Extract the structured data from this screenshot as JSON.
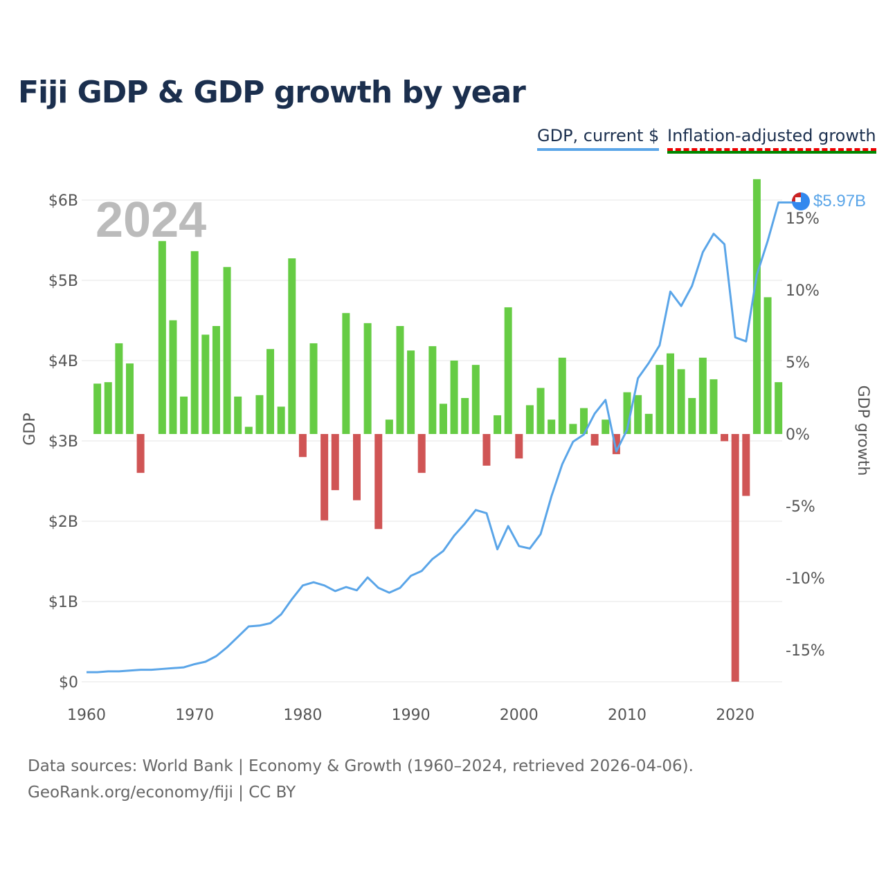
{
  "title": "Fiji GDP & GDP growth by year",
  "legend": {
    "gdp": "GDP, current $",
    "growth": "Inflation-adjusted growth"
  },
  "year_label": "2024",
  "end_label": "$5.97B",
  "source_line1": "Data sources: World Bank | Economy & Growth (1960–2024, retrieved 2026-04-06).",
  "source_line2": "GeoRank.org/economy/fiji | CC BY",
  "colors": {
    "line": "#5aa5e8",
    "positive": "#66cc44",
    "negative": "#d05555",
    "title": "#1b2f4e"
  },
  "chart_data": {
    "type": "bar+line",
    "title": "Fiji GDP & GDP growth by year",
    "ylabel": "GDP",
    "y2label": "GDP growth",
    "ylim": [
      0,
      6
    ],
    "y2lim": [
      -17.2,
      17.2
    ],
    "xticks": [
      "1960",
      "1970",
      "1980",
      "1990",
      "2000",
      "2010",
      "2020"
    ],
    "yticks": [
      "$0",
      "$1B",
      "$2B",
      "$3B",
      "$4B",
      "$5B",
      "$6B"
    ],
    "y2ticks": [
      "-15%",
      "-10%",
      "-5%",
      "0%",
      "5%",
      "10%",
      "15%"
    ],
    "gdp": {
      "name": "GDP, current $",
      "start_year": 1960,
      "values_billion": [
        0.12,
        0.12,
        0.13,
        0.13,
        0.14,
        0.15,
        0.15,
        0.16,
        0.17,
        0.18,
        0.22,
        0.25,
        0.32,
        0.43,
        0.56,
        0.69,
        0.7,
        0.73,
        0.84,
        1.03,
        1.2,
        1.24,
        1.2,
        1.13,
        1.18,
        1.14,
        1.3,
        1.17,
        1.11,
        1.17,
        1.32,
        1.38,
        1.53,
        1.63,
        1.82,
        1.97,
        2.14,
        2.1,
        1.65,
        1.94,
        1.69,
        1.66,
        1.84,
        2.31,
        2.71,
        2.99,
        3.08,
        3.34,
        3.51,
        2.87,
        3.14,
        3.78,
        3.97,
        4.19,
        4.86,
        4.68,
        4.93,
        5.35,
        5.58,
        5.45,
        4.29,
        4.24,
        5.07,
        5.49,
        5.97
      ]
    },
    "growth": {
      "name": "Inflation-adjusted growth",
      "start_year": 1961,
      "values_pct": [
        3.5,
        3.6,
        6.3,
        4.9,
        -2.7,
        0,
        13.4,
        7.9,
        2.6,
        12.7,
        6.9,
        7.5,
        11.6,
        2.6,
        0.5,
        2.7,
        5.9,
        1.9,
        12.2,
        -1.6,
        6.3,
        -6.0,
        -3.9,
        8.4,
        -4.6,
        7.7,
        -6.6,
        1.0,
        7.5,
        5.8,
        -2.7,
        6.1,
        2.1,
        5.1,
        2.5,
        4.8,
        -2.2,
        1.3,
        8.8,
        -1.7,
        2.0,
        3.2,
        1.0,
        5.3,
        0.7,
        1.8,
        -0.8,
        1.0,
        -1.4,
        2.9,
        2.7,
        1.4,
        4.8,
        5.6,
        4.5,
        2.5,
        5.3,
        3.8,
        -0.5,
        -17.2,
        -4.3,
        17.7,
        9.5,
        3.6
      ]
    }
  }
}
